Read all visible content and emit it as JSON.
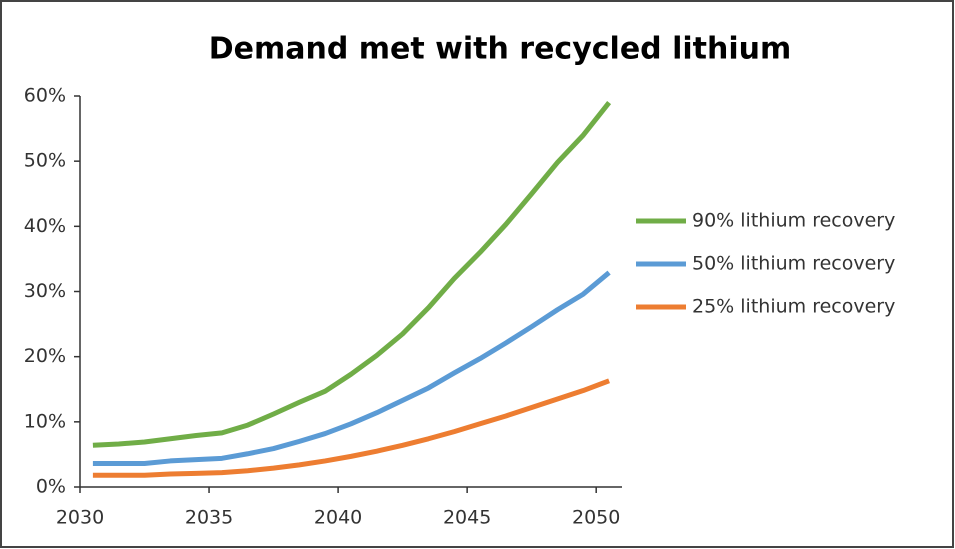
{
  "chart_data": {
    "type": "line",
    "title": "Demand met with recycled lithium",
    "x": [
      2030.5,
      2031.5,
      2032.5,
      2033.5,
      2034.5,
      2035.5,
      2036.5,
      2037.5,
      2038.5,
      2039.5,
      2040.5,
      2041.5,
      2042.5,
      2043.5,
      2044.5,
      2045.5,
      2046.5,
      2047.5,
      2048.5,
      2049.5,
      2050.5
    ],
    "series": [
      {
        "name": "90% lithium recovery",
        "color": "#70ad47",
        "values": [
          6.4,
          6.6,
          6.9,
          7.4,
          7.9,
          8.3,
          9.5,
          11.2,
          13.0,
          14.7,
          17.3,
          20.2,
          23.5,
          27.5,
          32.0,
          36.0,
          40.3,
          45.0,
          49.8,
          54.0,
          59.0
        ]
      },
      {
        "name": "50% lithium recovery",
        "color": "#5b9bd5",
        "values": [
          3.6,
          3.6,
          3.6,
          4.0,
          4.2,
          4.4,
          5.1,
          5.9,
          7.0,
          8.2,
          9.7,
          11.4,
          13.3,
          15.2,
          17.5,
          19.7,
          22.1,
          24.6,
          27.2,
          29.6,
          32.9
        ]
      },
      {
        "name": "25% lithium recovery",
        "color": "#ed7d31",
        "values": [
          1.8,
          1.8,
          1.8,
          2.0,
          2.1,
          2.2,
          2.5,
          2.9,
          3.4,
          4.0,
          4.7,
          5.5,
          6.4,
          7.4,
          8.5,
          9.7,
          10.9,
          12.2,
          13.5,
          14.8,
          16.3
        ]
      }
    ],
    "xlim": [
      2030,
      2051
    ],
    "xticks": [
      2030,
      2035,
      2040,
      2045,
      2050
    ],
    "ylim": [
      0,
      60
    ],
    "yticks": [
      {
        "value": 0,
        "label": "0%"
      },
      {
        "value": 10,
        "label": "10%"
      },
      {
        "value": 20,
        "label": "20%"
      },
      {
        "value": 30,
        "label": "30%"
      },
      {
        "value": 40,
        "label": "40%"
      },
      {
        "value": 50,
        "label": "50%"
      },
      {
        "value": 60,
        "label": "60%"
      }
    ],
    "legend": "right"
  }
}
